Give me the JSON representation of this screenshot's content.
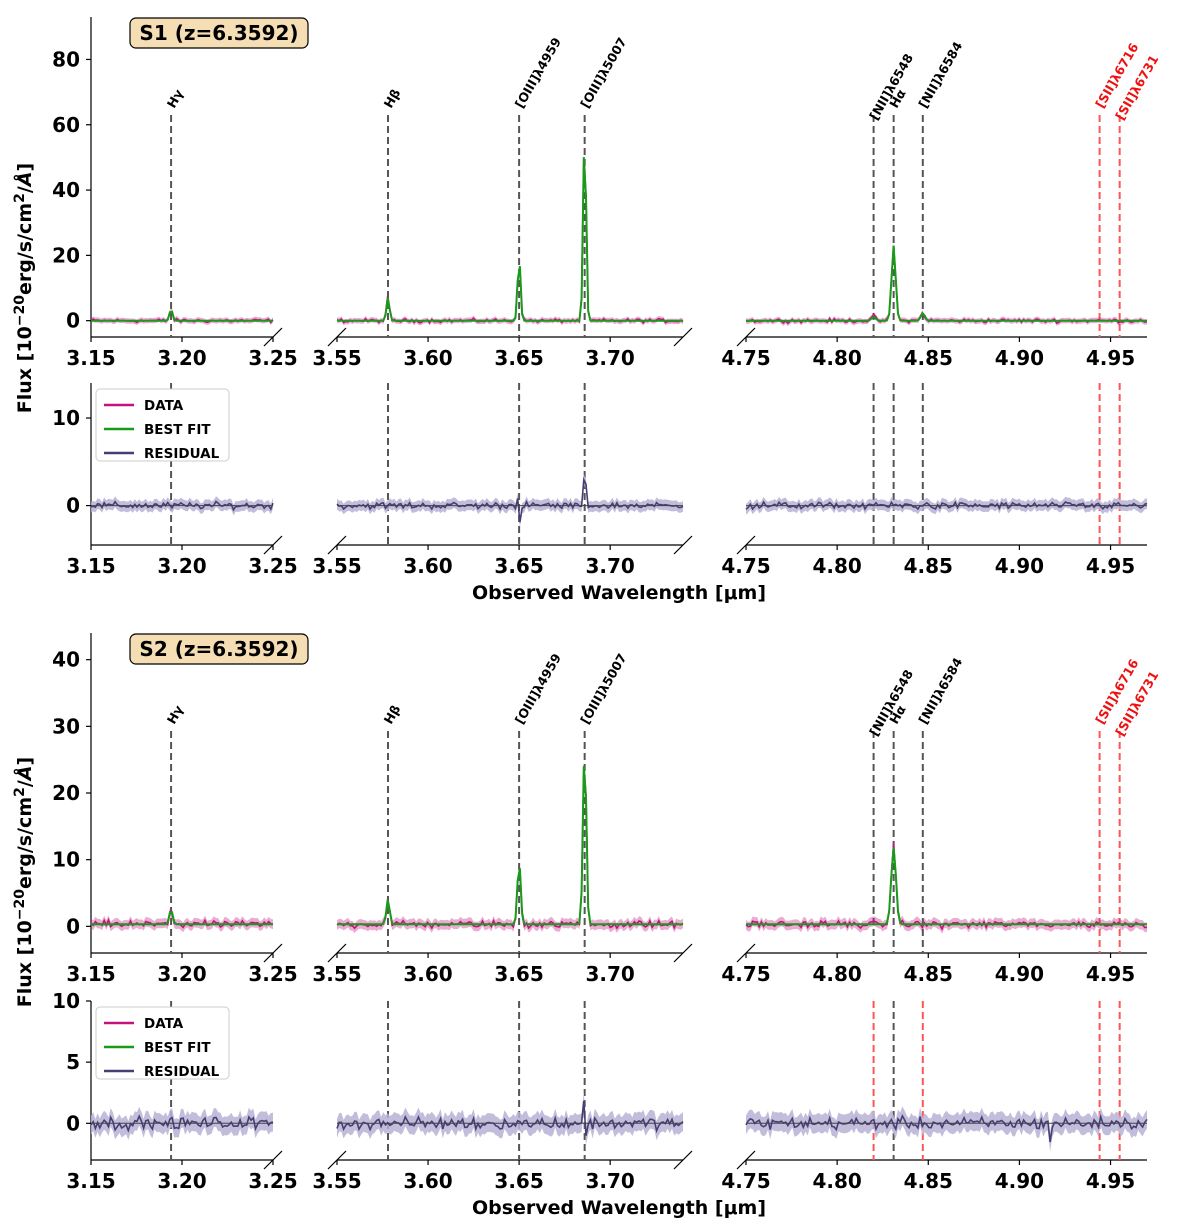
{
  "chart_data": [
    {
      "type": "line",
      "panel": "top-spectrum",
      "label": "S1 (z=6.3592)",
      "ylabel": "Flux [10$^{-20}$erg/s/cm$^2$/Å]",
      "ylim": [
        -5,
        93
      ],
      "yticks": [
        0,
        20,
        40,
        60,
        80
      ],
      "x_segments": [
        {
          "xlim": [
            3.15,
            3.25
          ],
          "xticks": [
            "3.15",
            "3.20",
            "3.25"
          ]
        },
        {
          "xlim": [
            3.55,
            3.74
          ],
          "xticks": [
            "3.55",
            "3.60",
            "3.65",
            "3.70"
          ]
        },
        {
          "xlim": [
            4.75,
            4.97
          ],
          "xticks": [
            "4.75",
            "4.80",
            "4.85",
            "4.90",
            "4.95"
          ]
        }
      ],
      "lines": [
        {
          "name": "Hγ",
          "x": 3.194,
          "color": "#555555",
          "label_color": "#000000"
        },
        {
          "name": "Hβ",
          "x": 3.578,
          "color": "#555555",
          "label_color": "#000000"
        },
        {
          "name": "[OIII]λ4959",
          "x": 3.65,
          "color": "#555555",
          "label_color": "#000000"
        },
        {
          "name": "[OIII]λ5007",
          "x": 3.686,
          "color": "#555555",
          "label_color": "#000000"
        },
        {
          "name": "[NII]λ6548",
          "x": 4.82,
          "color": "#555555",
          "label_color": "#000000"
        },
        {
          "name": "Hα",
          "x": 4.831,
          "color": "#555555",
          "label_color": "#000000"
        },
        {
          "name": "[NII]λ6584",
          "x": 4.847,
          "color": "#555555",
          "label_color": "#000000"
        },
        {
          "name": "[SII]λ6716",
          "x": 4.944,
          "color": "#ff5555",
          "label_color": "#ee1111"
        },
        {
          "name": "[SII]λ6731",
          "x": 4.955,
          "color": "#ff5555",
          "label_color": "#ee1111"
        }
      ],
      "peaks": [
        {
          "x": 3.194,
          "amp": 3.5,
          "sigma": 0.0008
        },
        {
          "x": 3.578,
          "amp": 7.2,
          "sigma": 0.0008
        },
        {
          "x": 3.65,
          "amp": 19.5,
          "sigma": 0.0008
        },
        {
          "x": 3.686,
          "amp": 59,
          "sigma": 0.0008
        },
        {
          "x": 4.82,
          "amp": 1.2,
          "sigma": 0.0011
        },
        {
          "x": 4.831,
          "amp": 23,
          "sigma": 0.0011
        },
        {
          "x": 4.847,
          "amp": 2.3,
          "sigma": 0.0011
        }
      ],
      "continuum": 0,
      "noise": 0.9,
      "series": [
        {
          "name": "DATA",
          "color": "#c2127e"
        },
        {
          "name": "BEST FIT",
          "color": "#1a9a1a"
        }
      ]
    },
    {
      "type": "line",
      "panel": "top-residual",
      "ylim": [
        -4.5,
        14
      ],
      "yticks": [
        0,
        10
      ],
      "xlabel": "Observed Wavelength [μm]",
      "legend": {
        "placement": "top-left",
        "entries": [
          "DATA",
          "BEST FIT",
          "RESIDUAL"
        ],
        "colors": [
          "#c2127e",
          "#1a9a1a",
          "#463f73"
        ]
      },
      "noise": 0.55,
      "spikes": [
        {
          "x": 3.65,
          "amp": -2.5
        },
        {
          "x": 3.686,
          "amp": 4.2
        }
      ],
      "series": [
        {
          "name": "RESIDUAL",
          "color": "#463f73",
          "band_color": "#b8b2d6"
        }
      ]
    },
    {
      "type": "line",
      "panel": "bottom-spectrum",
      "label": "S2 (z=6.3592)",
      "ylabel": "Flux [10$^{-20}$erg/s/cm$^2$/Å]",
      "ylim": [
        -4,
        44
      ],
      "yticks": [
        0,
        10,
        20,
        30,
        40
      ],
      "lines": [
        {
          "name": "Hγ",
          "x": 3.194,
          "color": "#555555",
          "label_color": "#000000"
        },
        {
          "name": "Hβ",
          "x": 3.578,
          "color": "#555555",
          "label_color": "#000000"
        },
        {
          "name": "[OIII]λ4959",
          "x": 3.65,
          "color": "#555555",
          "label_color": "#000000"
        },
        {
          "name": "[OIII]λ5007",
          "x": 3.686,
          "color": "#555555",
          "label_color": "#000000"
        },
        {
          "name": "[NII]λ6548",
          "x": 4.82,
          "color": "#555555",
          "label_color": "#000000"
        },
        {
          "name": "Hα",
          "x": 4.831,
          "color": "#555555",
          "label_color": "#000000"
        },
        {
          "name": "[NII]λ6584",
          "x": 4.847,
          "color": "#555555",
          "label_color": "#000000"
        },
        {
          "name": "[SII]λ6716",
          "x": 4.944,
          "color": "#ff5555",
          "label_color": "#ee1111"
        },
        {
          "name": "[SII]λ6731",
          "x": 4.955,
          "color": "#ff5555",
          "label_color": "#ee1111"
        }
      ],
      "peaks": [
        {
          "x": 3.194,
          "amp": 2.2,
          "sigma": 0.0009
        },
        {
          "x": 3.578,
          "amp": 3.8,
          "sigma": 0.0009
        },
        {
          "x": 3.65,
          "amp": 9.5,
          "sigma": 0.0009
        },
        {
          "x": 3.686,
          "amp": 27,
          "sigma": 0.0009
        },
        {
          "x": 4.831,
          "amp": 11.5,
          "sigma": 0.0013
        }
      ],
      "continuum": 0.3,
      "noise": 0.8,
      "series": [
        {
          "name": "DATA",
          "color": "#c2127e"
        },
        {
          "name": "BEST FIT",
          "color": "#1a9a1a"
        }
      ]
    },
    {
      "type": "line",
      "panel": "bottom-residual",
      "ylim": [
        -3,
        10
      ],
      "yticks": [
        0,
        5,
        10
      ],
      "xlabel": "Observed Wavelength [μm]",
      "legend": {
        "placement": "top-left",
        "entries": [
          "DATA",
          "BEST FIT",
          "RESIDUAL"
        ],
        "colors": [
          "#c2127e",
          "#1a9a1a",
          "#463f73"
        ]
      },
      "red_line_positions": [
        4.82,
        4.847,
        4.944,
        4.955
      ],
      "noise": 0.7,
      "spikes": [
        {
          "x": 3.686,
          "amp": 2.6
        },
        {
          "x": 4.917,
          "amp": 1.8
        }
      ],
      "series": [
        {
          "name": "RESIDUAL",
          "color": "#463f73",
          "band_color": "#b8b2d6"
        }
      ]
    }
  ]
}
